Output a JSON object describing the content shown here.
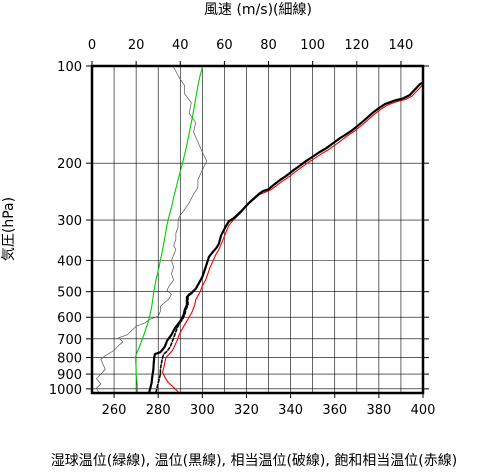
{
  "chart_data": {
    "type": "line",
    "top_axis": {
      "label": "風速 (m/s)(細線)",
      "ticks": [
        0,
        20,
        40,
        60,
        80,
        100,
        120,
        140
      ],
      "range": [
        0,
        150
      ]
    },
    "bottom_axis": {
      "label": "湿球温位(緑線), 温位(黒線), 相当温位(破線), 飽和相当温位(赤線)",
      "ticks": [
        260,
        280,
        300,
        320,
        340,
        360,
        380,
        400
      ],
      "range": [
        250,
        400
      ]
    },
    "y_axis": {
      "label": "気圧(hPa)",
      "scale": "log",
      "reversed": true,
      "ticks": [
        100,
        200,
        300,
        400,
        500,
        600,
        700,
        800,
        900,
        1000
      ],
      "range": [
        100,
        1030
      ]
    },
    "grid": true,
    "series": [
      {
        "name": "温位(黒線)",
        "axis": "bottom",
        "color": "#000000",
        "points": [
          [
            276,
            1020
          ],
          [
            276.5,
            990
          ],
          [
            277,
            960
          ],
          [
            277.2,
            930
          ],
          [
            277.5,
            900
          ],
          [
            277.8,
            870
          ],
          [
            278,
            830
          ],
          [
            278.2,
            800
          ],
          [
            278.5,
            780
          ],
          [
            281,
            770
          ],
          [
            283,
            740
          ],
          [
            284,
            710
          ],
          [
            286,
            680
          ],
          [
            287.5,
            650
          ],
          [
            289,
            630
          ],
          [
            290.5,
            610
          ],
          [
            291.5,
            590
          ],
          [
            292,
            570
          ],
          [
            293,
            550
          ],
          [
            293,
            520
          ],
          [
            294,
            510
          ],
          [
            295,
            505
          ],
          [
            297,
            490
          ],
          [
            298.5,
            470
          ],
          [
            300,
            450
          ],
          [
            301,
            430
          ],
          [
            302,
            410
          ],
          [
            303,
            390
          ],
          [
            305,
            375
          ],
          [
            306.5,
            365
          ],
          [
            307.5,
            355
          ],
          [
            308.5,
            335
          ],
          [
            310.5,
            315
          ],
          [
            312,
            303
          ],
          [
            314.5,
            295
          ],
          [
            318,
            280
          ],
          [
            321,
            266
          ],
          [
            324,
            255
          ],
          [
            326,
            248
          ],
          [
            327.5,
            244
          ],
          [
            330,
            241
          ],
          [
            332.5,
            233
          ],
          [
            335,
            226
          ],
          [
            338,
            219
          ],
          [
            341,
            211
          ],
          [
            344,
            204
          ],
          [
            347,
            197
          ],
          [
            350,
            191
          ],
          [
            353,
            185
          ],
          [
            356,
            180
          ],
          [
            359,
            174
          ],
          [
            362,
            168
          ],
          [
            365,
            163
          ],
          [
            368,
            158
          ],
          [
            371,
            152
          ],
          [
            374,
            146
          ],
          [
            377,
            140
          ],
          [
            380,
            135
          ],
          [
            383,
            131
          ],
          [
            387,
            128
          ],
          [
            391,
            126
          ],
          [
            394,
            123
          ],
          [
            397,
            117
          ],
          [
            398.5,
            114
          ],
          [
            399.5,
            113
          ]
        ]
      },
      {
        "name": "相当温位(破線)",
        "axis": "bottom",
        "color": "#000000",
        "points": [
          [
            279,
            1025
          ],
          [
            279.5,
            990
          ],
          [
            280,
            960
          ],
          [
            280.5,
            930
          ],
          [
            281,
            900
          ],
          [
            281,
            870
          ],
          [
            281.5,
            830
          ],
          [
            282,
            800
          ],
          [
            282.5,
            780
          ],
          [
            284,
            765
          ],
          [
            285.5,
            740
          ],
          [
            286.5,
            710
          ],
          [
            287.5,
            680
          ],
          [
            288.5,
            650
          ],
          [
            289.5,
            630
          ],
          [
            291,
            610
          ],
          [
            292,
            590
          ],
          [
            292.5,
            570
          ],
          [
            293.5,
            550
          ],
          [
            293.5,
            520
          ],
          [
            294.5,
            510
          ],
          [
            295.5,
            505
          ]
        ]
      },
      {
        "name": "飽和相当温位(赤線)",
        "axis": "bottom",
        "color": "#ee0000",
        "points": [
          [
            289,
            1020
          ],
          [
            287,
            990
          ],
          [
            284.5,
            955
          ],
          [
            283,
            920
          ],
          [
            282,
            890
          ],
          [
            282.5,
            860
          ],
          [
            283,
            830
          ],
          [
            283.5,
            800
          ],
          [
            285,
            780
          ],
          [
            286.5,
            760
          ],
          [
            287.5,
            735
          ],
          [
            288.5,
            710
          ],
          [
            289.5,
            680
          ],
          [
            291,
            650
          ],
          [
            292.5,
            625
          ],
          [
            294,
            600
          ],
          [
            295.5,
            575
          ],
          [
            296.5,
            550
          ],
          [
            297,
            530
          ],
          [
            298,
            515
          ],
          [
            299,
            500
          ],
          [
            300,
            480
          ],
          [
            301.5,
            460
          ],
          [
            302.5,
            440
          ],
          [
            303.5,
            420
          ],
          [
            305,
            400
          ],
          [
            306,
            385
          ],
          [
            307.5,
            370
          ],
          [
            309,
            350
          ],
          [
            310.5,
            330
          ],
          [
            312,
            312
          ],
          [
            314,
            300
          ],
          [
            317,
            287
          ],
          [
            320,
            272
          ],
          [
            323,
            260
          ],
          [
            326,
            250
          ],
          [
            328.5,
            246
          ],
          [
            331,
            242
          ],
          [
            333.5,
            235
          ],
          [
            336,
            228
          ],
          [
            339,
            221
          ],
          [
            342,
            213
          ],
          [
            345,
            206
          ],
          [
            348,
            199
          ],
          [
            351,
            193
          ],
          [
            354,
            187
          ],
          [
            357,
            182
          ],
          [
            360,
            176
          ],
          [
            363,
            170
          ],
          [
            366,
            164
          ],
          [
            369,
            159
          ],
          [
            372,
            153
          ],
          [
            375,
            147
          ],
          [
            378,
            141
          ],
          [
            381,
            136
          ],
          [
            384,
            132
          ],
          [
            388,
            129
          ],
          [
            392,
            127
          ],
          [
            395,
            124
          ],
          [
            398,
            118
          ],
          [
            399.5,
            115
          ],
          [
            400,
            114
          ]
        ]
      },
      {
        "name": "湿球温位(緑線)",
        "axis": "bottom",
        "color": "#00cc00",
        "points": [
          [
            270.5,
            1020
          ],
          [
            270.5,
            980
          ],
          [
            270.3,
            940
          ],
          [
            270,
            900
          ],
          [
            270,
            860
          ],
          [
            269.8,
            820
          ],
          [
            269.8,
            790
          ],
          [
            270.5,
            770
          ],
          [
            271.5,
            740
          ],
          [
            272.5,
            710
          ],
          [
            273.5,
            680
          ],
          [
            274.5,
            650
          ],
          [
            275.5,
            620
          ],
          [
            276,
            600
          ],
          [
            276.5,
            580
          ],
          [
            277,
            560
          ],
          [
            277.5,
            530
          ],
          [
            278,
            500
          ],
          [
            278.5,
            480
          ],
          [
            279,
            460
          ],
          [
            280,
            430
          ],
          [
            281,
            400
          ],
          [
            282,
            370
          ],
          [
            283,
            340
          ],
          [
            284,
            310
          ],
          [
            285,
            290
          ],
          [
            286,
            275
          ],
          [
            287,
            255
          ],
          [
            288,
            240
          ],
          [
            289,
            225
          ],
          [
            290,
            212
          ],
          [
            291,
            200
          ],
          [
            292,
            188
          ],
          [
            293,
            175
          ],
          [
            294,
            162
          ],
          [
            295,
            150
          ],
          [
            296,
            138
          ],
          [
            297,
            126
          ],
          [
            298,
            115
          ],
          [
            299,
            107
          ],
          [
            300,
            101
          ]
        ]
      },
      {
        "name": "風速(細線)",
        "axis": "top",
        "color": "#555555",
        "points": [
          [
            3,
            1020
          ],
          [
            2,
            995
          ],
          [
            4,
            965
          ],
          [
            2,
            930
          ],
          [
            4,
            900
          ],
          [
            6,
            870
          ],
          [
            5,
            840
          ],
          [
            4,
            810
          ],
          [
            6,
            790
          ],
          [
            10,
            760
          ],
          [
            12,
            735
          ],
          [
            14,
            715
          ],
          [
            12,
            695
          ],
          [
            16,
            680
          ],
          [
            18,
            660
          ],
          [
            20,
            640
          ],
          [
            24,
            625
          ],
          [
            26,
            610
          ],
          [
            30,
            595
          ],
          [
            31,
            575
          ],
          [
            31,
            555
          ],
          [
            33,
            540
          ],
          [
            35,
            525
          ],
          [
            36,
            510
          ],
          [
            34,
            495
          ],
          [
            35,
            480
          ],
          [
            37,
            460
          ],
          [
            36,
            440
          ],
          [
            37,
            420
          ],
          [
            36,
            400
          ],
          [
            37,
            385
          ],
          [
            38,
            370
          ],
          [
            37,
            360
          ],
          [
            38,
            345
          ],
          [
            38,
            330
          ],
          [
            39,
            315
          ],
          [
            39,
            300
          ],
          [
            40,
            290
          ],
          [
            42,
            278
          ],
          [
            44,
            265
          ],
          [
            46,
            250
          ],
          [
            48,
            238
          ],
          [
            48,
            225
          ],
          [
            50,
            210
          ],
          [
            52,
            197
          ],
          [
            50,
            185
          ],
          [
            48,
            172
          ],
          [
            46,
            160
          ],
          [
            47,
            150
          ],
          [
            44,
            140
          ],
          [
            45,
            130
          ],
          [
            42,
            122
          ],
          [
            42,
            115
          ],
          [
            40,
            110
          ],
          [
            38,
            104
          ],
          [
            37,
            101
          ]
        ]
      }
    ]
  }
}
